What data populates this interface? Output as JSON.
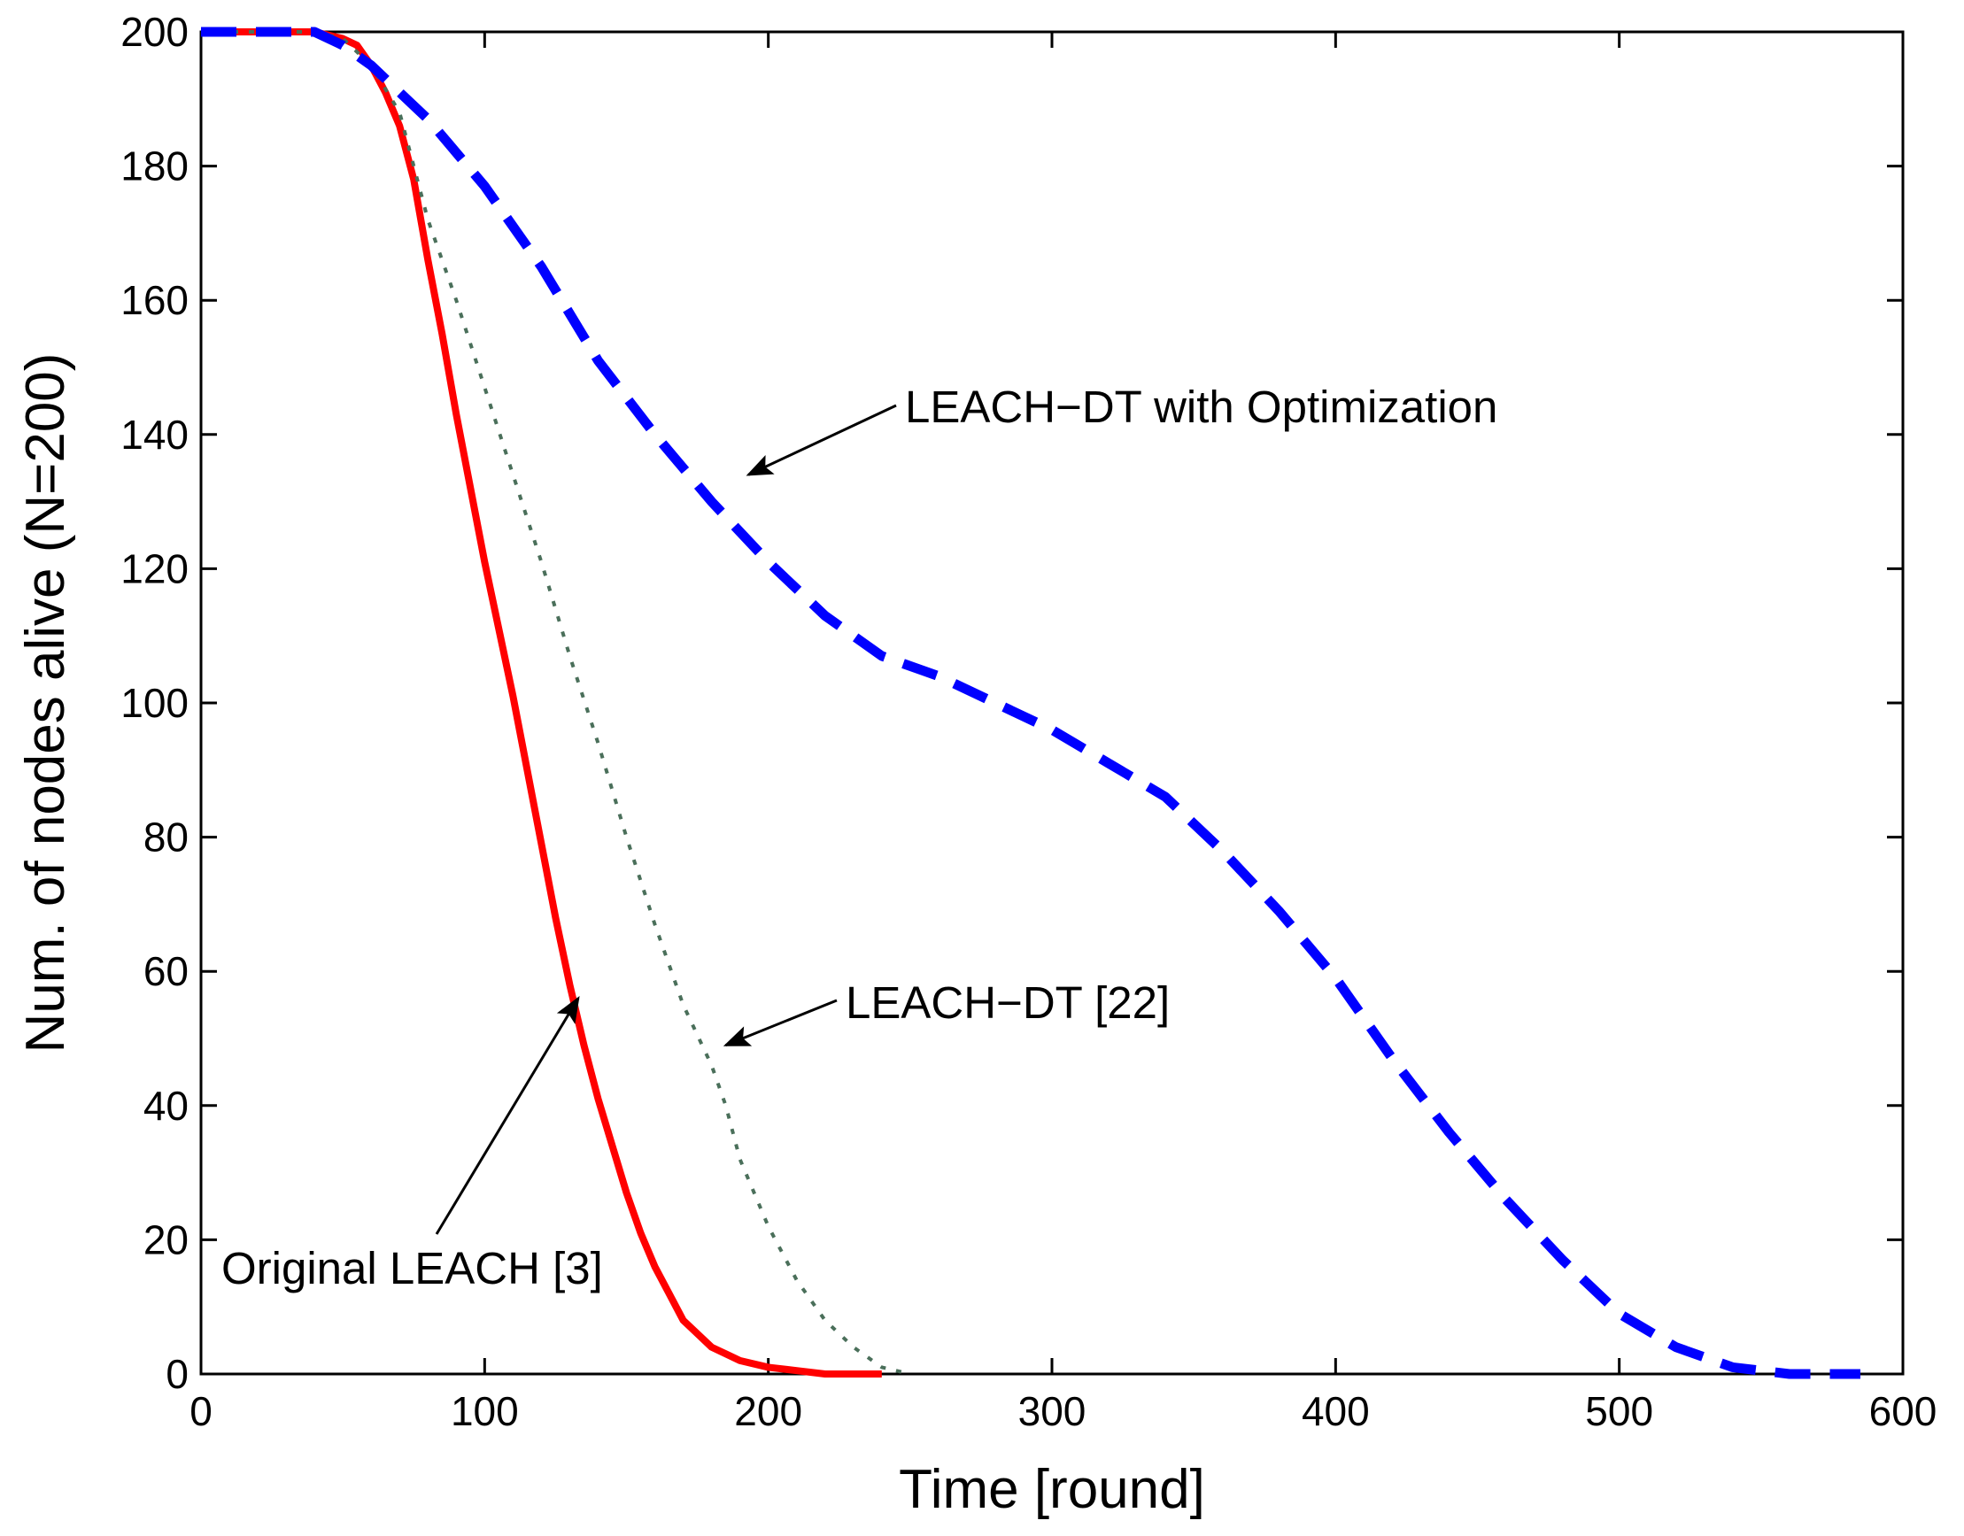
{
  "chart_data": {
    "type": "line",
    "title": "",
    "xlabel": "Time [round]",
    "ylabel": "Num. of nodes alive (N=200)",
    "xlim": [
      0,
      600
    ],
    "ylim": [
      0,
      200
    ],
    "xticks": [
      0,
      100,
      200,
      300,
      400,
      500,
      600
    ],
    "yticks": [
      0,
      20,
      40,
      60,
      80,
      100,
      120,
      140,
      160,
      180,
      200
    ],
    "grid": false,
    "series": [
      {
        "name": "Original LEACH [3]",
        "color": "#ff0000",
        "style": "solid",
        "x": [
          0,
          40,
          50,
          55,
          60,
          65,
          70,
          75,
          80,
          85,
          90,
          95,
          100,
          105,
          110,
          115,
          120,
          125,
          130,
          135,
          140,
          145,
          150,
          155,
          160,
          165,
          170,
          175,
          180,
          185,
          190,
          200,
          210,
          220,
          240
        ],
        "y": [
          200,
          200,
          199,
          198,
          195,
          191,
          186,
          178,
          166,
          155,
          143,
          132,
          121,
          111,
          101,
          90,
          79,
          68,
          58,
          49,
          41,
          34,
          27,
          21,
          16,
          12,
          8,
          6,
          4,
          3,
          2,
          1,
          0.5,
          0,
          0
        ]
      },
      {
        "name": "LEACH-DT [22]",
        "color": "#4a6f5a",
        "style": "dotted",
        "x": [
          0,
          40,
          50,
          60,
          70,
          75,
          80,
          90,
          100,
          110,
          120,
          130,
          140,
          150,
          160,
          170,
          180,
          185,
          190,
          200,
          210,
          220,
          230,
          240,
          250
        ],
        "y": [
          200,
          200,
          199,
          195,
          188,
          180,
          172,
          160,
          147,
          134,
          121,
          107,
          94,
          80,
          67,
          55,
          46,
          40,
          32,
          22,
          14,
          8,
          4,
          1,
          0
        ]
      },
      {
        "name": "LEACH-DT with Optimization",
        "color": "#0000ff",
        "style": "dashed",
        "x": [
          0,
          40,
          50,
          60,
          70,
          80,
          100,
          120,
          140,
          160,
          180,
          200,
          220,
          240,
          260,
          280,
          300,
          320,
          340,
          360,
          380,
          400,
          420,
          440,
          460,
          480,
          500,
          520,
          540,
          560,
          580,
          585
        ],
        "y": [
          200,
          200,
          198,
          195,
          191,
          187,
          177,
          165,
          151,
          140,
          130,
          121,
          113,
          107,
          104,
          100,
          96,
          91,
          86,
          78,
          69,
          59,
          47,
          36,
          26,
          17,
          9,
          4,
          1,
          0,
          0,
          0
        ]
      }
    ],
    "annotations": [
      {
        "text": "LEACH−DT with Optimization",
        "target_x": 193,
        "target_y": 134
      },
      {
        "text": "LEACH−DT [22]",
        "target_x": 185,
        "target_y": 49
      },
      {
        "text": "Original LEACH [3]",
        "target_x": 133,
        "target_y": 56
      }
    ]
  }
}
